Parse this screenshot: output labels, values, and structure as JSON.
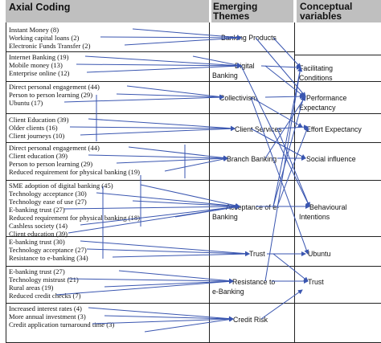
{
  "headers": {
    "axial": "Axial Coding",
    "themes_line1": "Emerging",
    "themes_line2": "Themes",
    "vars_line1": "Conceptual",
    "vars_line2": "variables"
  },
  "axial_codes": [
    "Instant Money (8)",
    "Working capital loans (2)",
    "Electronic Funds Transfer (2)",
    "Internet Banking (19)",
    "Mobile money (13)",
    "Enterprise online (12)",
    "Direct personal engagement (44)",
    "Person to person learning (29)",
    "Ubuntu (17)",
    "Client Education  (39)",
    "Older clients (16)",
    "Client journeys (10)",
    "Direct personal engagement (44)",
    "Client education (39)",
    "Person to person learning (29)",
    "Reduced requirement for physical banking (19)",
    "SME adoption of digital banking (45)",
    "Technology acceptance (30)",
    "Technology ease of use (27)",
    "E-banking trust (27)",
    "Reduced requirement for physical banking (18)",
    "Cashless society (14)",
    "Client education (39)",
    "E-banking trust (30)",
    "Technology acceptance (27)",
    "Resistance to e-banking (34)",
    "E-banking trust (27)",
    "Technology mistrust (21)",
    "Rural areas (19)",
    "Reduced credit checks (7)",
    "Increased interest rates (4)",
    "More annual investment (3)",
    "Credit application turnaround time (3)"
  ],
  "themes": [
    {
      "line1": "Banking Products",
      "line2": ""
    },
    {
      "line1": "Digital",
      "line2": "Banking"
    },
    {
      "line1": "Collectivism",
      "line2": ""
    },
    {
      "line1": "Client Services",
      "line2": ""
    },
    {
      "line1": "Branch Banking",
      "line2": ""
    },
    {
      "line1": "Acceptance of e-",
      "line2": "Banking"
    },
    {
      "line1": "Trust",
      "line2": ""
    },
    {
      "line1": "Resistance to",
      "line2": "e-Banking"
    },
    {
      "line1": "Credit Risk",
      "line2": ""
    }
  ],
  "variables": [
    {
      "line1": "Facilitating",
      "line2": "Conditions"
    },
    {
      "line1": "Performance",
      "line2": "Expectancy"
    },
    {
      "line1": "Effort Expectancy",
      "line2": ""
    },
    {
      "line1": "Social influence",
      "line2": ""
    },
    {
      "line1": "Behavioural",
      "line2": "Intentions"
    },
    {
      "line1": "Ubuntu",
      "line2": ""
    },
    {
      "line1": "Trust",
      "line2": ""
    }
  ],
  "colors": {
    "header_background": "#bfbfbf",
    "arrow": "#3a56b0",
    "rule": "#222222"
  }
}
